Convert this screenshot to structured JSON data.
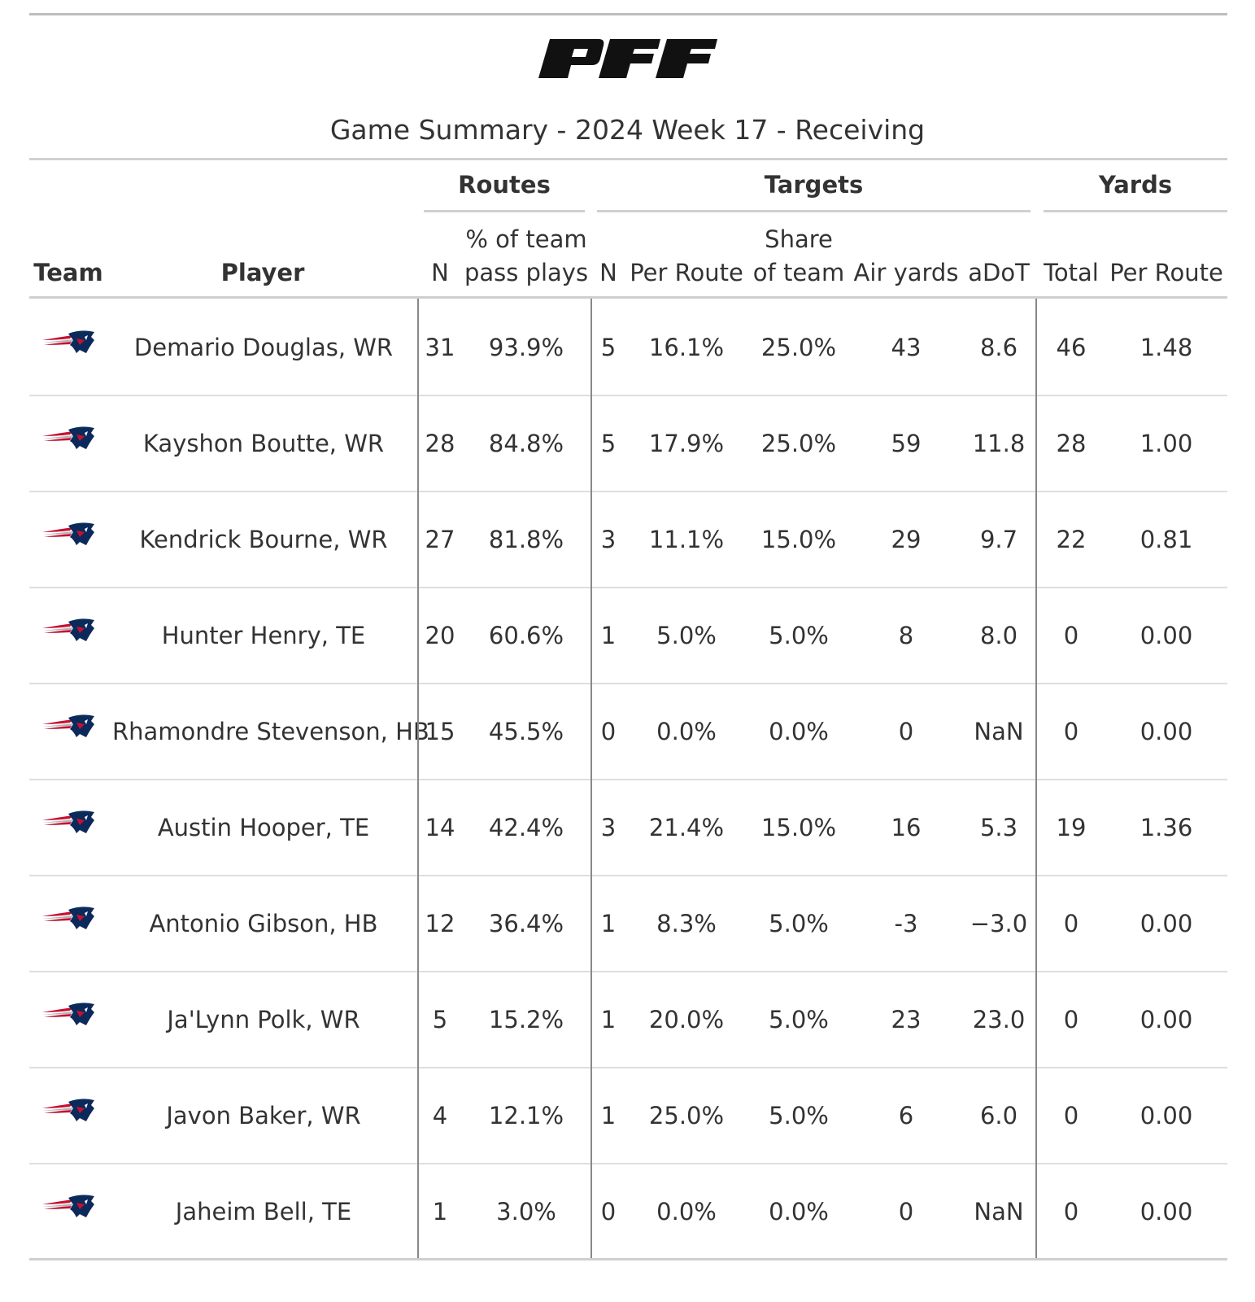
{
  "brand": {
    "logo_text": "PFF"
  },
  "title": "Game Summary - 2024 Week 17 - Receiving",
  "spanners": {
    "routes": "Routes",
    "targets": "Targets",
    "yards": "Yards"
  },
  "columns": {
    "team": "Team",
    "player": "Player",
    "routes_n": "N",
    "routes_pct_line1": "% of team",
    "routes_pct_line2": "pass plays",
    "targets_n": "N",
    "targets_per_route": "Per Route",
    "share_line1": "Share",
    "share_line2": "of team",
    "air_yards": "Air yards",
    "adot": "aDoT",
    "yards_total": "Total",
    "yards_per_route": "Per Route"
  },
  "team_logo": {
    "icon": "patriots-helmet-logo",
    "colors": {
      "navy": "#0b2a5b",
      "red": "#c8102e",
      "silver": "#b0b7bc"
    }
  },
  "chart_data": {
    "type": "table",
    "title": "Game Summary - 2024 Week 17 - Receiving",
    "rows": [
      {
        "player": "Demario Douglas, WR",
        "routes_n": "31",
        "routes_pct": "93.9%",
        "targets_n": "5",
        "targets_per_route": "16.1%",
        "share": "25.0%",
        "air_yards": "43",
        "adot": "8.6",
        "yards_total": "46",
        "yards_per_route": "1.48"
      },
      {
        "player": "Kayshon Boutte, WR",
        "routes_n": "28",
        "routes_pct": "84.8%",
        "targets_n": "5",
        "targets_per_route": "17.9%",
        "share": "25.0%",
        "air_yards": "59",
        "adot": "11.8",
        "yards_total": "28",
        "yards_per_route": "1.00"
      },
      {
        "player": "Kendrick Bourne, WR",
        "routes_n": "27",
        "routes_pct": "81.8%",
        "targets_n": "3",
        "targets_per_route": "11.1%",
        "share": "15.0%",
        "air_yards": "29",
        "adot": "9.7",
        "yards_total": "22",
        "yards_per_route": "0.81"
      },
      {
        "player": "Hunter Henry, TE",
        "routes_n": "20",
        "routes_pct": "60.6%",
        "targets_n": "1",
        "targets_per_route": "5.0%",
        "share": "5.0%",
        "air_yards": "8",
        "adot": "8.0",
        "yards_total": "0",
        "yards_per_route": "0.00"
      },
      {
        "player": "Rhamondre Stevenson, HB",
        "routes_n": "15",
        "routes_pct": "45.5%",
        "targets_n": "0",
        "targets_per_route": "0.0%",
        "share": "0.0%",
        "air_yards": "0",
        "adot": "NaN",
        "yards_total": "0",
        "yards_per_route": "0.00"
      },
      {
        "player": "Austin Hooper, TE",
        "routes_n": "14",
        "routes_pct": "42.4%",
        "targets_n": "3",
        "targets_per_route": "21.4%",
        "share": "15.0%",
        "air_yards": "16",
        "adot": "5.3",
        "yards_total": "19",
        "yards_per_route": "1.36"
      },
      {
        "player": "Antonio Gibson, HB",
        "routes_n": "12",
        "routes_pct": "36.4%",
        "targets_n": "1",
        "targets_per_route": "8.3%",
        "share": "5.0%",
        "air_yards": "-3",
        "adot": "−3.0",
        "yards_total": "0",
        "yards_per_route": "0.00"
      },
      {
        "player": "Ja'Lynn Polk, WR",
        "routes_n": "5",
        "routes_pct": "15.2%",
        "targets_n": "1",
        "targets_per_route": "20.0%",
        "share": "5.0%",
        "air_yards": "23",
        "adot": "23.0",
        "yards_total": "0",
        "yards_per_route": "0.00"
      },
      {
        "player": "Javon Baker, WR",
        "routes_n": "4",
        "routes_pct": "12.1%",
        "targets_n": "1",
        "targets_per_route": "25.0%",
        "share": "5.0%",
        "air_yards": "6",
        "adot": "6.0",
        "yards_total": "0",
        "yards_per_route": "0.00"
      },
      {
        "player": "Jaheim Bell, TE",
        "routes_n": "1",
        "routes_pct": "3.0%",
        "targets_n": "0",
        "targets_per_route": "0.0%",
        "share": "0.0%",
        "air_yards": "0",
        "adot": "NaN",
        "yards_total": "0",
        "yards_per_route": "0.00"
      }
    ]
  }
}
